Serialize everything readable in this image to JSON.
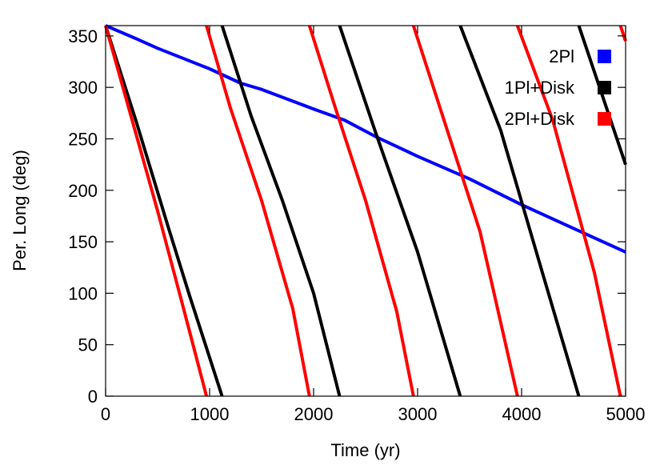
{
  "chart_data": {
    "type": "line",
    "xlabel": "Time (yr)",
    "ylabel": "Per. Long (deg)",
    "xlim": [
      0,
      5000
    ],
    "ylim": [
      0,
      360
    ],
    "xticks": [
      0,
      1000,
      2000,
      3000,
      4000,
      5000
    ],
    "yticks": [
      0,
      50,
      100,
      150,
      200,
      250,
      300,
      350
    ],
    "grid": false,
    "legend_position": "top-right",
    "series": [
      {
        "name": "2Pl",
        "color": "#0000ff",
        "segments": [
          [
            [
              0,
              360
            ],
            [
              300,
              347
            ],
            [
              500,
              338
            ],
            [
              1000,
              318
            ],
            [
              1300,
              304
            ],
            [
              1500,
              298
            ],
            [
              2000,
              279
            ],
            [
              2300,
              268
            ],
            [
              2600,
              252
            ],
            [
              3000,
              233
            ],
            [
              3500,
              211
            ],
            [
              4000,
              186
            ],
            [
              4500,
              163
            ],
            [
              5000,
              140
            ]
          ]
        ]
      },
      {
        "name": "1Pl+Disk",
        "color": "#000000",
        "segments": [
          [
            [
              0,
              360
            ],
            [
              300,
              265
            ],
            [
              600,
              165
            ],
            [
              800,
              100
            ],
            [
              1120,
              0
            ]
          ],
          [
            [
              1120,
              360
            ],
            [
              1400,
              272
            ],
            [
              1700,
              190
            ],
            [
              2000,
              100
            ],
            [
              2250,
              0
            ]
          ],
          [
            [
              2250,
              360
            ],
            [
              2600,
              255
            ],
            [
              3000,
              140
            ],
            [
              3410,
              0
            ]
          ],
          [
            [
              3410,
              360
            ],
            [
              3800,
              258
            ],
            [
              4200,
              120
            ],
            [
              4550,
              0
            ]
          ],
          [
            [
              4550,
              360
            ],
            [
              5000,
              225
            ]
          ]
        ]
      },
      {
        "name": "2Pl+Disk",
        "color": "#ff0000",
        "segments": [
          [
            [
              0,
              360
            ],
            [
              250,
              270
            ],
            [
              500,
              180
            ],
            [
              750,
              85
            ],
            [
              970,
              0
            ]
          ],
          [
            [
              970,
              360
            ],
            [
              1200,
              280
            ],
            [
              1500,
              190
            ],
            [
              1800,
              85
            ],
            [
              1960,
              0
            ]
          ],
          [
            [
              1960,
              360
            ],
            [
              2200,
              283
            ],
            [
              2500,
              190
            ],
            [
              2800,
              82
            ],
            [
              2960,
              0
            ]
          ],
          [
            [
              2960,
              360
            ],
            [
              3200,
              285
            ],
            [
              3600,
              160
            ],
            [
              3960,
              0
            ]
          ],
          [
            [
              3960,
              360
            ],
            [
              4300,
              268
            ],
            [
              4700,
              120
            ],
            [
              4950,
              0
            ]
          ],
          [
            [
              4950,
              360
            ],
            [
              5000,
              345
            ]
          ]
        ]
      }
    ]
  }
}
